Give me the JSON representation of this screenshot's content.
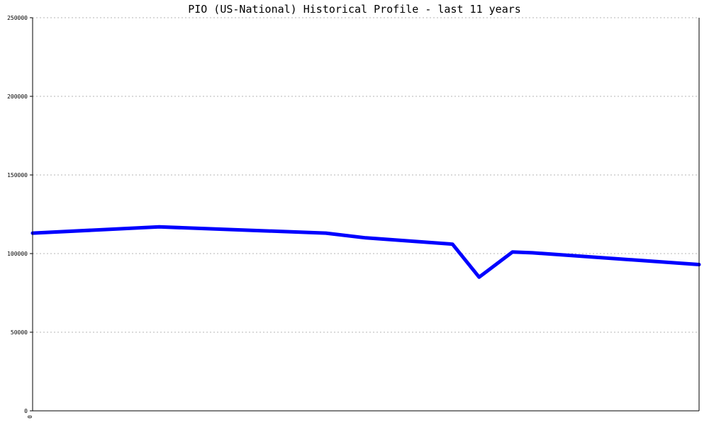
{
  "chart_data": {
    "type": "line",
    "title": "PIO (US-National) Historical Profile - last 11 years",
    "xlabel": "",
    "ylabel": "",
    "ylim": [
      0,
      250000
    ],
    "yticks": [
      0,
      50000,
      100000,
      150000,
      200000,
      250000
    ],
    "ytick_labels": [
      "0",
      "50000",
      "100000",
      "150000",
      "200000",
      "250000"
    ],
    "xtick_labels": [
      "0"
    ],
    "x": [
      0,
      0.19,
      0.44,
      0.5,
      0.63,
      0.67,
      0.72,
      0.75,
      1.0
    ],
    "grid": true,
    "series": [
      {
        "color": "#0000ff",
        "values": [
          113000,
          117000,
          113000,
          110000,
          106000,
          85000,
          101000,
          100500,
          93000
        ]
      }
    ]
  }
}
